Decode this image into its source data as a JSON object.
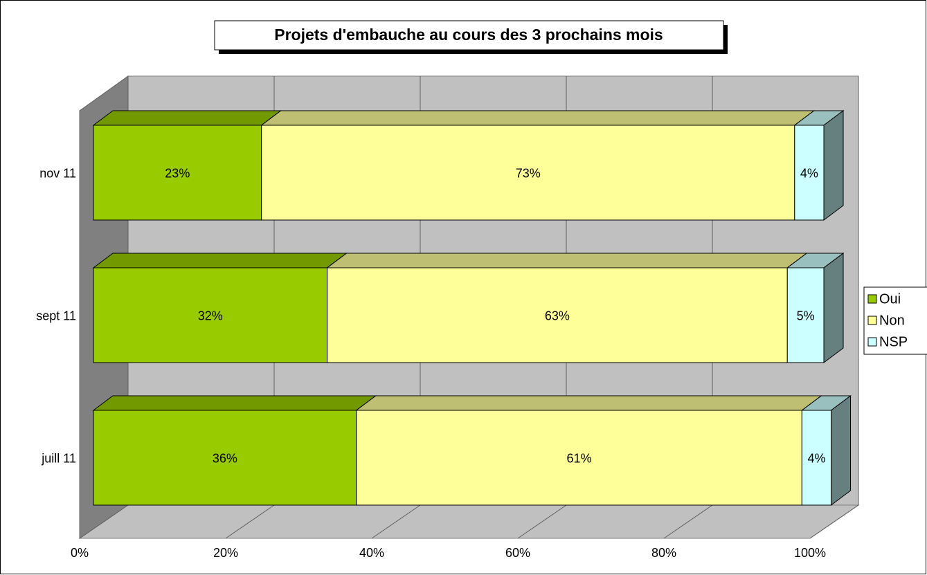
{
  "chart_data": {
    "type": "bar",
    "stacked": true,
    "orientation": "horizontal",
    "title": "Projets d'embauche au cours des 3 prochains mois",
    "categories": [
      "nov 11",
      "sept 11",
      "juill 11"
    ],
    "series": [
      {
        "name": "Oui",
        "color": "#99cc00",
        "values": [
          23,
          32,
          36
        ],
        "value_labels": [
          "23%",
          "32%",
          "36%"
        ]
      },
      {
        "name": "Non",
        "color": "#ffff99",
        "values": [
          73,
          63,
          61
        ],
        "value_labels": [
          "73%",
          "63%",
          "61%"
        ]
      },
      {
        "name": "NSP",
        "color": "#ccffff",
        "values": [
          4,
          5,
          4
        ],
        "value_labels": [
          "4%",
          "5%",
          "4%"
        ]
      }
    ],
    "xlim": [
      0,
      100
    ],
    "xticks": [
      {
        "value": 0,
        "label": "0%"
      },
      {
        "value": 20,
        "label": "20%"
      },
      {
        "value": 40,
        "label": "40%"
      },
      {
        "value": 60,
        "label": "60%"
      },
      {
        "value": 80,
        "label": "80%"
      },
      {
        "value": 100,
        "label": "100%"
      }
    ],
    "grid": true,
    "legend": "right"
  }
}
